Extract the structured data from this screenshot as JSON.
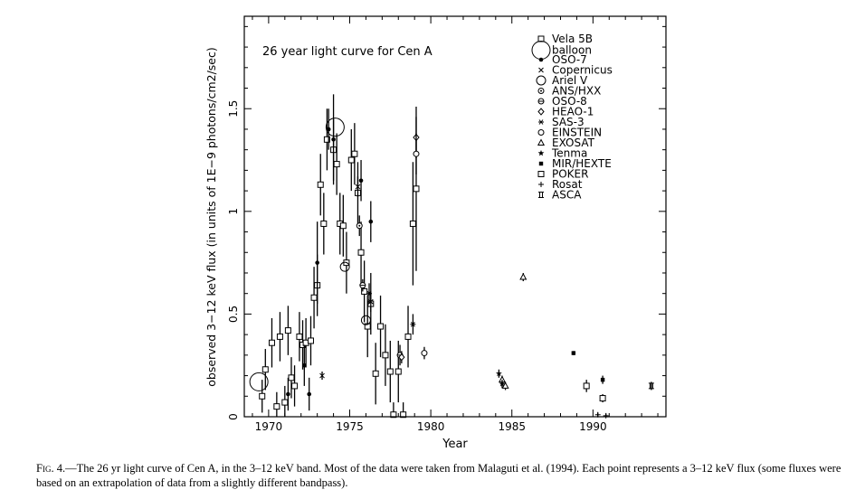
{
  "chart_data": {
    "type": "scatter",
    "title": "26 year light curve for Cen A",
    "xlabel": "Year",
    "ylabel": "observed 3−12 keV flux (in units of 1E−9 photons/cm2/sec)",
    "xlim": [
      1968.5,
      1994.5
    ],
    "ylim": [
      0,
      1.95
    ],
    "x_ticks": [
      1970,
      1975,
      1980,
      1985,
      1990
    ],
    "y_ticks": [
      0,
      0.5,
      1,
      1.5
    ],
    "y_tick_labels": [
      "0",
      "0.5",
      "1",
      "1.5"
    ],
    "legend_position": "top-right",
    "grid": false,
    "series": [
      {
        "name": "Vela 5B",
        "marker": "square",
        "points": [
          [
            1969.6,
            0.1,
            0.08
          ],
          [
            1969.8,
            0.23,
            0.1
          ],
          [
            1970.2,
            0.36,
            0.12
          ],
          [
            1970.5,
            0.05,
            0.07
          ],
          [
            1970.7,
            0.39,
            0.12
          ],
          [
            1971.0,
            0.07,
            0.08
          ],
          [
            1971.2,
            0.42,
            0.12
          ],
          [
            1971.4,
            0.19,
            0.1
          ],
          [
            1971.6,
            0.15,
            0.1
          ],
          [
            1971.9,
            0.39,
            0.12
          ],
          [
            1972.1,
            0.35,
            0.12
          ],
          [
            1972.3,
            0.36,
            0.12
          ],
          [
            1972.6,
            0.37,
            0.12
          ],
          [
            1972.8,
            0.58,
            0.15
          ],
          [
            1973.0,
            0.64,
            0.15
          ],
          [
            1973.2,
            1.13,
            0.15
          ],
          [
            1973.4,
            0.94,
            0.15
          ],
          [
            1973.6,
            1.35,
            0.15
          ],
          [
            1974.0,
            1.3,
            0.15
          ],
          [
            1974.2,
            1.23,
            0.15
          ],
          [
            1974.4,
            0.94,
            0.15
          ],
          [
            1974.6,
            0.93,
            0.15
          ],
          [
            1974.8,
            0.75,
            0.15
          ],
          [
            1975.1,
            1.25,
            0.15
          ],
          [
            1975.3,
            1.28,
            0.15
          ],
          [
            1975.5,
            1.09,
            0.15
          ],
          [
            1975.7,
            0.8,
            0.15
          ],
          [
            1975.9,
            0.61,
            0.15
          ],
          [
            1976.1,
            0.44,
            0.15
          ],
          [
            1976.3,
            0.55,
            0.15
          ],
          [
            1976.6,
            0.21,
            0.15
          ],
          [
            1976.9,
            0.44,
            0.15
          ],
          [
            1977.2,
            0.3,
            0.15
          ],
          [
            1977.5,
            0.22,
            0.15
          ],
          [
            1977.7,
            0.01,
            0.06
          ],
          [
            1978.0,
            0.22,
            0.15
          ],
          [
            1978.3,
            0.01,
            0.06
          ],
          [
            1978.6,
            0.39,
            0.15
          ],
          [
            1978.9,
            0.94,
            0.3
          ],
          [
            1979.1,
            1.11,
            0.4
          ]
        ]
      },
      {
        "name": "balloon",
        "marker": "big-circle",
        "points": [
          [
            1969.4,
            0.17,
            0.0
          ],
          [
            1974.1,
            1.41,
            0.0
          ]
        ]
      },
      {
        "name": "OSO-7",
        "marker": "dot",
        "points": [
          [
            1971.2,
            0.11,
            0.08
          ],
          [
            1972.2,
            0.25,
            0.1
          ],
          [
            1972.5,
            0.11,
            0.08
          ],
          [
            1973.0,
            0.75,
            0.2
          ],
          [
            1973.7,
            1.4,
            0.1
          ],
          [
            1974.0,
            1.35,
            0.22
          ],
          [
            1975.7,
            1.15,
            0.1
          ],
          [
            1976.3,
            0.95,
            0.1
          ]
        ]
      },
      {
        "name": "Copernicus",
        "marker": "x",
        "points": [
          [
            1973.3,
            0.2,
            0.02
          ],
          [
            1975.5,
            1.12,
            0.05
          ],
          [
            1976.3,
            0.56,
            0.05
          ]
        ]
      },
      {
        "name": "Ariel V",
        "marker": "circle",
        "points": [
          [
            1974.7,
            0.73,
            0.0
          ],
          [
            1976.0,
            0.47,
            0.0
          ]
        ]
      },
      {
        "name": "ANS/HXX",
        "marker": "circle-dot",
        "points": [
          [
            1975.6,
            0.93,
            0.05
          ]
        ]
      },
      {
        "name": "OSO-8",
        "marker": "cross-circle",
        "points": [
          [
            1975.8,
            0.64,
            0.03
          ],
          [
            1978.1,
            0.3,
            0.05
          ]
        ]
      },
      {
        "name": "HEAO-1",
        "marker": "diamond",
        "points": [
          [
            1978.2,
            0.29,
            0.03
          ],
          [
            1979.1,
            1.36,
            0.1
          ]
        ]
      },
      {
        "name": "SAS-3",
        "marker": "asterisk",
        "points": [
          [
            1976.2,
            0.6,
            0.05
          ],
          [
            1978.9,
            0.45,
            0.05
          ]
        ]
      },
      {
        "name": "EINSTEIN",
        "marker": "small-circle",
        "points": [
          [
            1979.1,
            1.28,
            0.1
          ],
          [
            1979.6,
            0.31,
            0.03
          ]
        ]
      },
      {
        "name": "EXOSAT",
        "marker": "triangle",
        "points": [
          [
            1984.4,
            0.18,
            0.02
          ],
          [
            1984.6,
            0.15,
            0.02
          ],
          [
            1985.7,
            0.68,
            0.02
          ]
        ]
      },
      {
        "name": "Tenma",
        "marker": "star",
        "points": [
          [
            1984.2,
            0.21,
            0.02
          ],
          [
            1984.4,
            0.16,
            0.02
          ]
        ]
      },
      {
        "name": "MIR/HEXTE",
        "marker": "small-square-filled",
        "points": [
          [
            1988.8,
            0.31,
            0.01
          ],
          [
            1990.6,
            0.18,
            0.02
          ]
        ]
      },
      {
        "name": "POKER",
        "marker": "square",
        "points": [
          [
            1989.6,
            0.15,
            0.03
          ],
          [
            1990.6,
            0.09,
            0.02
          ]
        ]
      },
      {
        "name": "Rosat",
        "marker": "plus",
        "points": [
          [
            1990.3,
            0.01,
            0.01
          ],
          [
            1990.8,
            0.005,
            0.01
          ]
        ]
      },
      {
        "name": "ASCA",
        "marker": "bracket",
        "points": [
          [
            1993.6,
            0.15,
            0.02
          ]
        ]
      }
    ]
  },
  "caption": {
    "label": "Fig. 4.",
    "text": "—The 26 yr light curve of Cen A, in the 3–12 keV band. Most of the data were taken from Malaguti et al. (1994). Each point represents a 3–12 keV flux (some fluxes were based on an extrapolation of data from a slightly different bandpass)."
  }
}
